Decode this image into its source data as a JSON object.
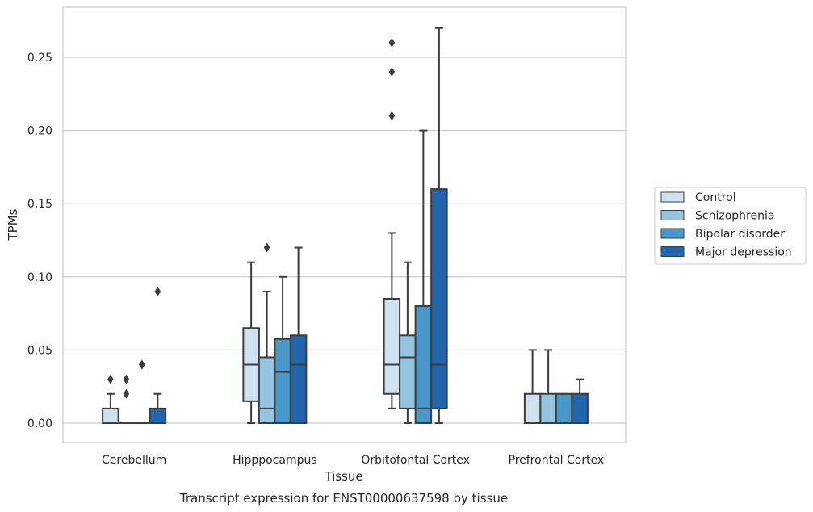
{
  "chart_data": {
    "type": "boxplot",
    "title": "",
    "caption": "Transcript expression for ENST00000637598 by tissue",
    "xlabel": "Tissue",
    "ylabel": "TPMs",
    "ylim": [
      -0.013,
      0.285
    ],
    "yticks": [
      0.0,
      0.05,
      0.1,
      0.15,
      0.2,
      0.25
    ],
    "ytick_labels": [
      "0.00",
      "0.05",
      "0.10",
      "0.15",
      "0.20",
      "0.25"
    ],
    "grid": "horizontal",
    "legend_position": "right",
    "categories": [
      "Cerebellum",
      "Hipppocampus",
      "Orbitofontal Cortex",
      "Prefrontal Cortex"
    ],
    "series": [
      {
        "name": "Control",
        "color": "#d0e1f2",
        "boxes": [
          {
            "whislo": 0.0,
            "q1": 0.0,
            "med": 0.0,
            "q3": 0.01,
            "whishi": 0.02,
            "fliers": [
              0.03
            ]
          },
          {
            "whislo": 0.0,
            "q1": 0.015,
            "med": 0.04,
            "q3": 0.065,
            "whishi": 0.11,
            "fliers": []
          },
          {
            "whislo": 0.01,
            "q1": 0.02,
            "med": 0.04,
            "q3": 0.085,
            "whishi": 0.13,
            "fliers": [
              0.21,
              0.24,
              0.26
            ]
          },
          {
            "whislo": 0.0,
            "q1": 0.0,
            "med": 0.0,
            "q3": 0.02,
            "whishi": 0.05,
            "fliers": []
          }
        ]
      },
      {
        "name": "Schizophrenia",
        "color": "#94c4df",
        "boxes": [
          {
            "whislo": 0.0,
            "q1": 0.0,
            "med": 0.0,
            "q3": 0.0,
            "whishi": 0.0,
            "fliers": [
              0.02,
              0.03
            ]
          },
          {
            "whislo": 0.0,
            "q1": 0.0,
            "med": 0.01,
            "q3": 0.045,
            "whishi": 0.09,
            "fliers": [
              0.12
            ]
          },
          {
            "whislo": 0.0,
            "q1": 0.01,
            "med": 0.045,
            "q3": 0.06,
            "whishi": 0.11,
            "fliers": []
          },
          {
            "whislo": 0.0,
            "q1": 0.0,
            "med": 0.0,
            "q3": 0.02,
            "whishi": 0.05,
            "fliers": []
          }
        ]
      },
      {
        "name": "Bipolar disorder",
        "color": "#4a98c9",
        "boxes": [
          {
            "whislo": 0.0,
            "q1": 0.0,
            "med": 0.0,
            "q3": 0.0,
            "whishi": 0.0,
            "fliers": [
              0.04,
              0.04
            ]
          },
          {
            "whislo": 0.0,
            "q1": 0.0,
            "med": 0.035,
            "q3": 0.0575,
            "whishi": 0.1,
            "fliers": []
          },
          {
            "whislo": 0.0,
            "q1": 0.0,
            "med": 0.01,
            "q3": 0.08,
            "whishi": 0.2,
            "fliers": []
          },
          {
            "whislo": 0.0,
            "q1": 0.0,
            "med": 0.0,
            "q3": 0.02,
            "whishi": 0.02,
            "fliers": []
          }
        ]
      },
      {
        "name": "Major depression",
        "color": "#2166ac",
        "boxes": [
          {
            "whislo": 0.0,
            "q1": 0.0,
            "med": 0.0,
            "q3": 0.01,
            "whishi": 0.02,
            "fliers": [
              0.09
            ]
          },
          {
            "whislo": 0.0,
            "q1": 0.0,
            "med": 0.04,
            "q3": 0.06,
            "whishi": 0.12,
            "fliers": []
          },
          {
            "whislo": 0.0,
            "q1": 0.01,
            "med": 0.04,
            "q3": 0.16,
            "whishi": 0.27,
            "fliers": []
          },
          {
            "whislo": 0.0,
            "q1": 0.0,
            "med": 0.0,
            "q3": 0.02,
            "whishi": 0.03,
            "fliers": []
          }
        ]
      }
    ]
  }
}
